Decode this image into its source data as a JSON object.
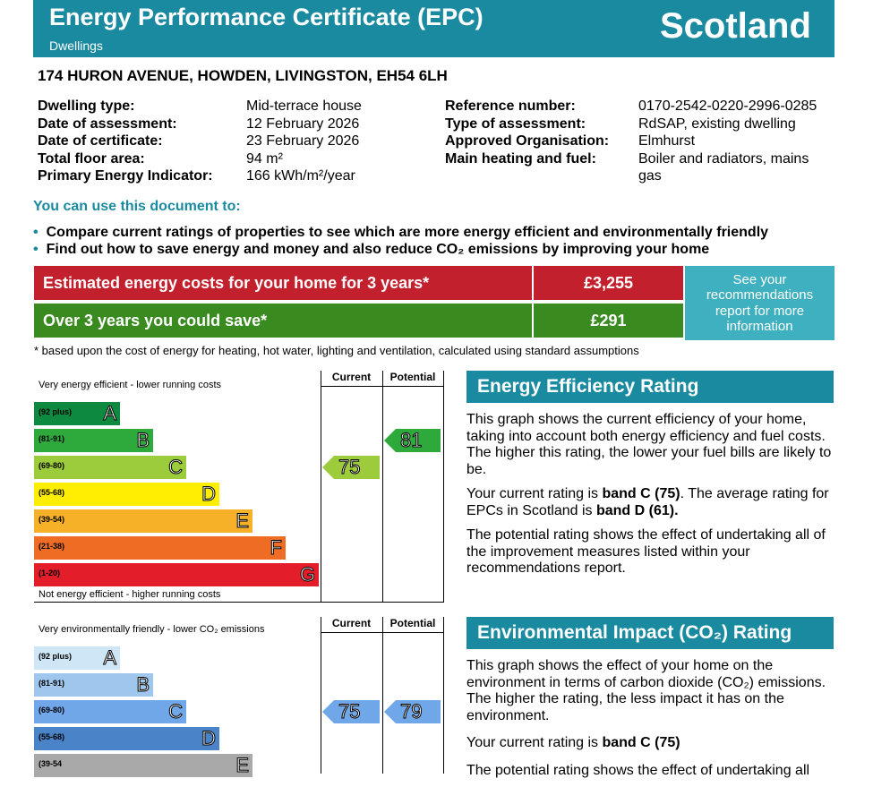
{
  "header": {
    "title": "Energy Performance Certificate (EPC)",
    "subtitle": "Dwellings",
    "country": "Scotland"
  },
  "address": "174 HURON AVENUE, HOWDEN, LIVINGSTON, EH54 6LH",
  "details_left": [
    {
      "label": "Dwelling type:",
      "value": "Mid-terrace house"
    },
    {
      "label": "Date of assessment:",
      "value": "12 February 2026"
    },
    {
      "label": "Date of certificate:",
      "value": "23 February 2026"
    },
    {
      "label": "Total floor area:",
      "value": "94 m²"
    },
    {
      "label": "Primary Energy Indicator:",
      "value": "166 kWh/m²/year"
    }
  ],
  "details_right": [
    {
      "label": "Reference number:",
      "value": "0170-2542-0220-2996-0285"
    },
    {
      "label": "Type of assessment:",
      "value": "RdSAP, existing dwelling"
    },
    {
      "label": "Approved Organisation:",
      "value": "Elmhurst"
    },
    {
      "label": "Main heating and fuel:",
      "value": "Boiler and radiators, mains gas"
    }
  ],
  "use": {
    "heading": "You can use this document to:",
    "bullets": [
      "Compare current ratings of properties to see which are more energy efficient and environmentally friendly",
      "Find out how to save energy and money and also reduce CO₂ emissions by improving your home"
    ]
  },
  "costs": {
    "row1_label": "Estimated energy costs for your home for 3 years*",
    "row1_value": "£3,255",
    "row2_label": "Over 3 years you could save*",
    "row2_value": "£291",
    "see_box": "See your recommendations report for more information",
    "footnote": "* based upon the cost of energy for heating, hot water, lighting and ventilation, calculated using standard assumptions",
    "row1_color": "#c3202d",
    "row2_color": "#3a8b1f"
  },
  "energy_chart": {
    "top_caption": "Very energy efficient - lower running costs",
    "bottom_caption": "Not energy efficient - higher running costs",
    "col_current": "Current",
    "col_potential": "Potential",
    "current": 75,
    "potential": 81,
    "bands": [
      {
        "range": "(92 plus)",
        "letter": "A",
        "color": "#0d8a3f"
      },
      {
        "range": "(81-91)",
        "letter": "B",
        "color": "#2eaa3c"
      },
      {
        "range": "(69-80)",
        "letter": "C",
        "color": "#9ccb3c"
      },
      {
        "range": "(55-68)",
        "letter": "D",
        "color": "#ffee00"
      },
      {
        "range": "(39-54)",
        "letter": "E",
        "color": "#f6b128"
      },
      {
        "range": "(21-38)",
        "letter": "F",
        "color": "#ee6c23"
      },
      {
        "range": "(1-20)",
        "letter": "G",
        "color": "#e41d2b"
      }
    ]
  },
  "env_chart": {
    "top_caption": "Very environmentally friendly - lower CO₂ emissions",
    "col_current": "Current",
    "col_potential": "Potential",
    "current": 75,
    "potential": 79,
    "bands": [
      {
        "range": "(92 plus)",
        "letter": "A",
        "color": "#cfe6f7"
      },
      {
        "range": "(81-91)",
        "letter": "B",
        "color": "#9fc7ee"
      },
      {
        "range": "(69-80)",
        "letter": "C",
        "color": "#6fa7e9"
      },
      {
        "range": "(55-68)",
        "letter": "D",
        "color": "#4a83c8"
      },
      {
        "range": "(39-54",
        "letter": "E",
        "color": "#a9a9a9"
      }
    ]
  },
  "eer": {
    "title": "Energy Efficiency Rating",
    "p1": "This graph shows the current efficiency of your home, taking into account both energy efficiency and fuel costs. The higher this rating, the lower your fuel bills are likely to be.",
    "p2_pre": "Your current rating is ",
    "p2_bold1": "band C (75)",
    "p2_mid": ". The average rating for EPCs in Scotland is ",
    "p2_bold2": "band D (61).",
    "p3": "The potential rating shows the effect of undertaking all of the improvement measures listed within your recommendations report."
  },
  "eir": {
    "title": "Environmental Impact (CO₂) Rating",
    "p1": "This graph shows the effect of your home on the environment in terms of carbon dioxide (CO₂) emissions. The higher the rating, the less impact it has on the environment.",
    "p2_pre": "Your current rating is ",
    "p2_bold": "band C (75)",
    "p3": "The potential rating shows the effect of undertaking all"
  }
}
